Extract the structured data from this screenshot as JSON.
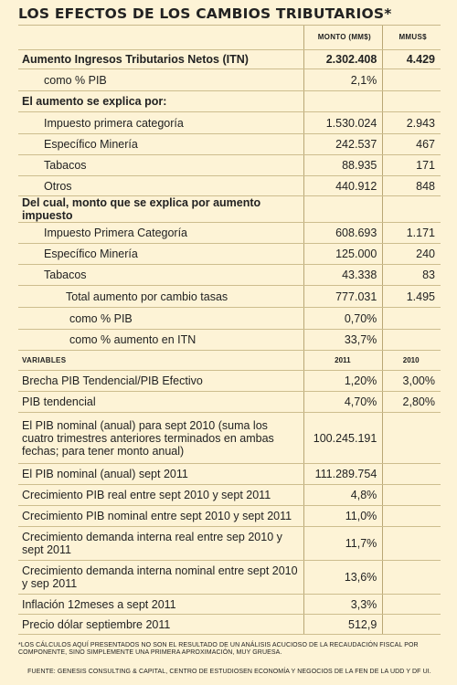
{
  "title": "LOS EFECTOS DE LOS CAMBIOS TRIBUTARIOS*",
  "columns": {
    "monto": "MONTO (MM$)",
    "mmus": "MMUS$"
  },
  "rows": [
    {
      "label": "Aumento Ingresos Tributarios Netos (ITN)",
      "v1": "2.302.408",
      "v2": "4.429",
      "style": "bold",
      "indent": 0
    },
    {
      "label": "como % PIB",
      "v1": "2,1%",
      "v2": "",
      "style": "",
      "indent": 1
    },
    {
      "label": "El aumento se explica por:",
      "v1": "",
      "v2": "",
      "style": "bold",
      "indent": 0
    },
    {
      "label": "Impuesto primera categoría",
      "v1": "1.530.024",
      "v2": "2.943",
      "style": "",
      "indent": 1
    },
    {
      "label": "Específico Minería",
      "v1": "242.537",
      "v2": "467",
      "style": "",
      "indent": 1
    },
    {
      "label": "Tabacos",
      "v1": "88.935",
      "v2": "171",
      "style": "",
      "indent": 1
    },
    {
      "label": "Otros",
      "v1": "440.912",
      "v2": "848",
      "style": "",
      "indent": 1
    },
    {
      "label": "Del cual, monto que se explica por aumento impuesto",
      "v1": "",
      "v2": "",
      "style": "bold",
      "indent": 0
    },
    {
      "label": "Impuesto Primera Categoría",
      "v1": "608.693",
      "v2": "1.171",
      "style": "",
      "indent": 1
    },
    {
      "label": "Específico Minería",
      "v1": "125.000",
      "v2": "240",
      "style": "",
      "indent": 1
    },
    {
      "label": "Tabacos",
      "v1": "43.338",
      "v2": "83",
      "style": "",
      "indent": 1
    },
    {
      "label": "Total aumento por cambio tasas",
      "v1": "777.031",
      "v2": "1.495",
      "style": "",
      "indent": 2
    },
    {
      "label": "como % PIB",
      "v1": "0,70%",
      "v2": "",
      "style": "",
      "indent": 3
    },
    {
      "label": "como % aumento en ITN",
      "v1": "33,7%",
      "v2": "",
      "style": "",
      "indent": 3
    }
  ],
  "variables_header": {
    "label": "VARIABLES",
    "y1": "2011",
    "y2": "2010"
  },
  "variables": [
    {
      "label": "Brecha PIB Tendencial/PIB Efectivo",
      "v1": "1,20%",
      "v2": "3,00%"
    },
    {
      "label": "PIB tendencial",
      "v1": "4,70%",
      "v2": "2,80%"
    },
    {
      "label": "El PIB nominal (anual) para sept 2010 (suma los cuatro trimestres anteriores terminados en  ambas fechas; para tener monto anual)",
      "v1": "100.245.191",
      "v2": ""
    },
    {
      "label": "El PIB nominal (anual) sept 2011",
      "v1": "111.289.754",
      "v2": ""
    },
    {
      "label": "Crecimiento PIB real entre sept 2010 y sept 2011",
      "v1": "4,8%",
      "v2": ""
    },
    {
      "label": "Crecimiento PIB nominal entre sept 2010 y sept 2011",
      "v1": "11,0%",
      "v2": ""
    },
    {
      "label": "Crecimiento demanda interna real entre sep 2010 y sept 2011",
      "v1": "11,7%",
      "v2": ""
    },
    {
      "label": "Crecimiento demanda interna nominal entre sept 2010 y sep 2011",
      "v1": "13,6%",
      "v2": ""
    },
    {
      "label": "Inflación 12meses a sept 2011",
      "v1": "3,3%",
      "v2": ""
    },
    {
      "label": "Precio dólar septiembre 2011",
      "v1": "512,9",
      "v2": ""
    }
  ],
  "footnote": "*Los cálculos aquí presentados no son el resultado de un análisis acucioso de la recaudación fiscal por componente, sino simplemente una primera aproximación, muy gruesa.",
  "source": "Fuente: Genesis Consulting & Capital, Centro de Estudiosen Economía y Negocios de la Fen de la UDD y DF UI."
}
